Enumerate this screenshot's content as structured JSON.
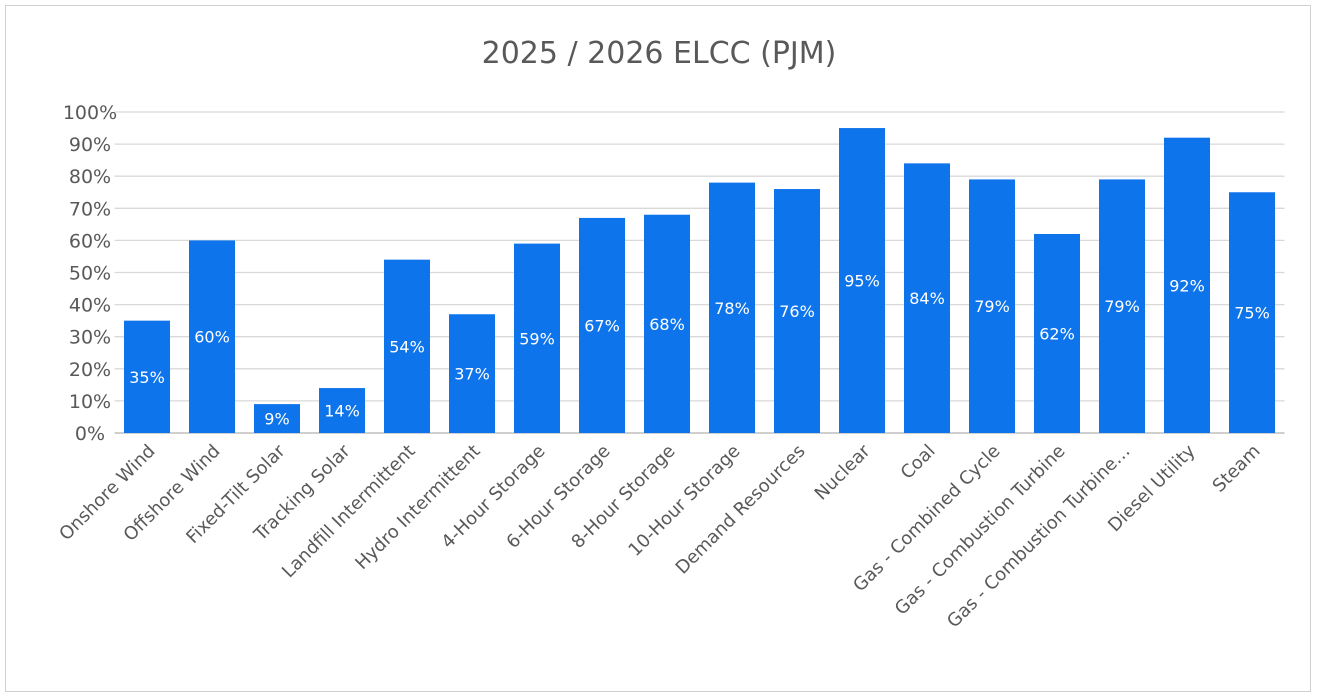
{
  "chart_data": {
    "type": "bar",
    "title": "2025 / 2026 ELCC (PJM)",
    "xlabel": "",
    "ylabel": "",
    "ylim": [
      0,
      100
    ],
    "y_ticks": [
      "0%",
      "10%",
      "20%",
      "30%",
      "40%",
      "50%",
      "60%",
      "70%",
      "80%",
      "90%",
      "100%"
    ],
    "grid": true,
    "legend": "none",
    "bar_color": "#0E74EC",
    "categories": [
      "Onshore Wind",
      "Offshore Wind",
      "Fixed-Tilt Solar",
      "Tracking Solar",
      "Landfill Intermittent",
      "Hydro Intermittent",
      "4-Hour Storage",
      "6-Hour Storage",
      "8-Hour Storage",
      "10-Hour Storage",
      "Demand Resources",
      "Nuclear",
      "Coal",
      "Gas - Combined Cycle",
      "Gas - Combustion Turbine",
      "Gas - Combustion Turbine…",
      "Diesel Utility",
      "Steam"
    ],
    "values": [
      35,
      60,
      9,
      14,
      54,
      37,
      59,
      67,
      68,
      78,
      76,
      95,
      84,
      79,
      62,
      79,
      92,
      75
    ],
    "data_labels": [
      "35%",
      "60%",
      "9%",
      "14%",
      "54%",
      "37%",
      "59%",
      "67%",
      "68%",
      "78%",
      "76%",
      "95%",
      "84%",
      "79%",
      "62%",
      "79%",
      "92%",
      "75%"
    ]
  }
}
